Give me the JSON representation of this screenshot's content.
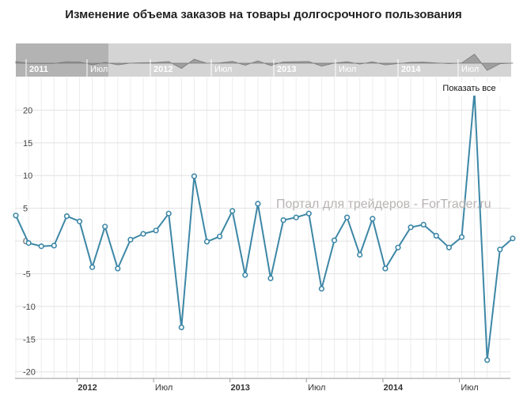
{
  "chart_data": {
    "type": "line",
    "title": "Изменение объема заказов на товары долгосрочного пользования",
    "xlabel": "",
    "ylabel": "",
    "x": [
      "2011-08",
      "2011-09",
      "2011-10",
      "2011-11",
      "2011-12",
      "2012-01",
      "2012-02",
      "2012-03",
      "2012-04",
      "2012-05",
      "2012-06",
      "2012-07",
      "2012-08",
      "2012-09",
      "2012-10",
      "2012-11",
      "2012-12",
      "2013-01",
      "2013-02",
      "2013-03",
      "2013-04",
      "2013-05",
      "2013-06",
      "2013-07",
      "2013-08",
      "2013-09",
      "2013-10",
      "2013-11",
      "2013-12",
      "2014-01",
      "2014-02",
      "2014-03",
      "2014-04",
      "2014-05",
      "2014-06",
      "2014-07",
      "2014-08",
      "2014-09",
      "2014-10",
      "2014-11"
    ],
    "series": [
      {
        "values": [
          3.9,
          -0.3,
          -0.8,
          -0.7,
          3.8,
          3.0,
          -4.0,
          2.2,
          -4.2,
          0.2,
          1.1,
          1.6,
          4.2,
          -13.2,
          9.9,
          -0.1,
          0.7,
          4.6,
          -5.2,
          5.7,
          -5.7,
          3.2,
          3.6,
          4.2,
          -7.3,
          0.1,
          3.6,
          -2.1,
          3.4,
          -4.2,
          -1.0,
          2.1,
          2.5,
          0.8,
          -1.0,
          0.6,
          22.8,
          -18.2,
          -1.3,
          0.4
        ]
      }
    ],
    "ylim": [
      -21,
      25
    ],
    "y_ticks": [
      "-20",
      "-15",
      "-10",
      "-5",
      "0",
      "5",
      "10",
      "15",
      "20"
    ],
    "x_ticks": [
      "2012",
      "Июл",
      "2013",
      "Июл",
      "2014",
      "Июл"
    ],
    "grid": true,
    "line_color": "#3d87a6",
    "navigator": {
      "labels": [
        "2011",
        "Июл",
        "2012",
        "Июл",
        "2013",
        "Июл",
        "2014",
        "Июл"
      ]
    }
  },
  "watermark": "Портал для трейдеров - ForTrader.ru",
  "show_all_label": "Показать все"
}
